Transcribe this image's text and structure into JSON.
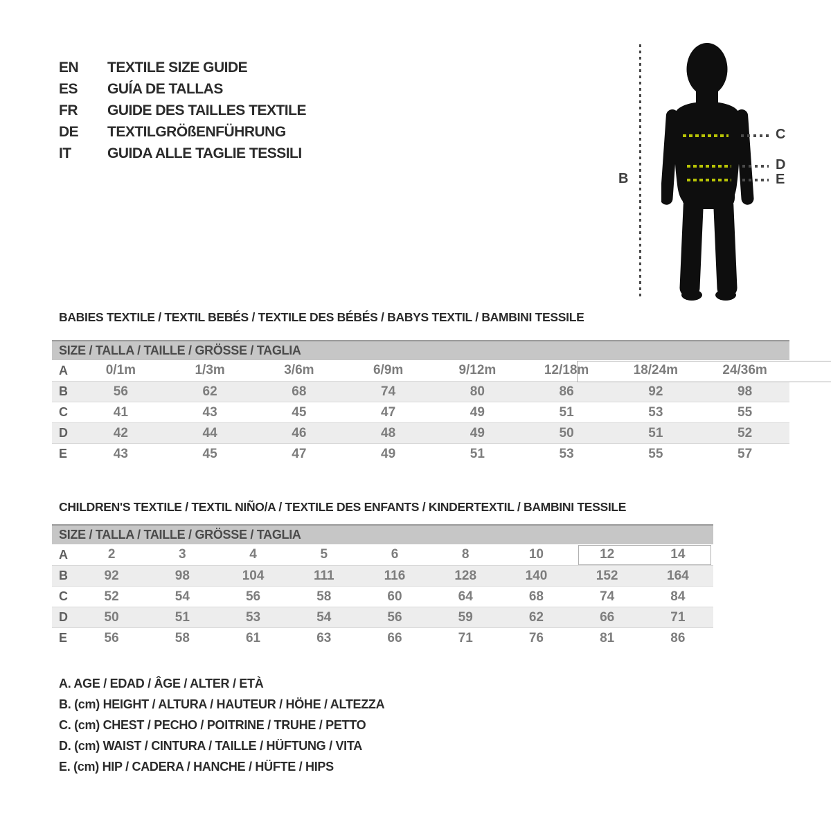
{
  "title_block": {
    "languages": [
      {
        "code": "EN",
        "label": "TEXTILE SIZE GUIDE"
      },
      {
        "code": "ES",
        "label": "GUÍA DE TALLAS"
      },
      {
        "code": "FR",
        "label": "GUIDE DES TAILLES TEXTILE"
      },
      {
        "code": "DE",
        "label": "TEXTILGRÖßENFÜHRUNG"
      },
      {
        "code": "IT",
        "label": "GUIDA ALLE TAGLIE TESSILI"
      }
    ]
  },
  "figure": {
    "height_label": "B",
    "chest_label": "C",
    "waist_label": "D",
    "hip_label": "E"
  },
  "babies": {
    "heading": "BABIES TEXTILE / TEXTIL BEBÉS / TEXTILE DES BÉBÉS / BABYS TEXTIL  / BAMBINI TESSILE",
    "size_header": "SIZE / TALLA / TAILLE / GRÖSSE / TAGLIA",
    "rows": [
      {
        "label": "A",
        "values": [
          "0/1m",
          "1/3m",
          "3/6m",
          "6/9m",
          "9/12m",
          "12/18m",
          "18/24m",
          "24/36m"
        ]
      },
      {
        "label": "B",
        "values": [
          "56",
          "62",
          "68",
          "74",
          "80",
          "86",
          "92",
          "98"
        ]
      },
      {
        "label": "C",
        "values": [
          "41",
          "43",
          "45",
          "47",
          "49",
          "51",
          "53",
          "55"
        ]
      },
      {
        "label": "D",
        "values": [
          "42",
          "44",
          "46",
          "48",
          "49",
          "50",
          "51",
          "52"
        ]
      },
      {
        "label": "E",
        "values": [
          "43",
          "45",
          "47",
          "49",
          "51",
          "53",
          "55",
          "57"
        ]
      }
    ]
  },
  "children": {
    "heading": "CHILDREN'S TEXTILE / TEXTIL NIÑO/A / TEXTILE DES ENFANTS / KINDERTEXTIL / BAMBINI TESSILE",
    "size_header": "SIZE / TALLA / TAILLE / GRÖSSE / TAGLIA",
    "rows": [
      {
        "label": "A",
        "values": [
          "2",
          "3",
          "4",
          "5",
          "6",
          "8",
          "10",
          "12",
          "14"
        ]
      },
      {
        "label": "B",
        "values": [
          "92",
          "98",
          "104",
          "111",
          "116",
          "128",
          "140",
          "152",
          "164"
        ]
      },
      {
        "label": "C",
        "values": [
          "52",
          "54",
          "56",
          "58",
          "60",
          "64",
          "68",
          "74",
          "84"
        ]
      },
      {
        "label": "D",
        "values": [
          "50",
          "51",
          "53",
          "54",
          "56",
          "59",
          "62",
          "66",
          "71"
        ]
      },
      {
        "label": "E",
        "values": [
          "56",
          "58",
          "61",
          "63",
          "66",
          "71",
          "76",
          "81",
          "86"
        ]
      }
    ]
  },
  "legend": {
    "items": [
      "A. AGE / EDAD / ÂGE / ALTER / ETÀ",
      "B. (cm) HEIGHT / ALTURA / HAUTEUR / HÖHE / ALTEZZA",
      "C. (cm) CHEST / PECHO / POITRINE / TRUHE / PETTO",
      "D. (cm) WAIST / CINTURA / TAILLE / HÜFTUNG / VITA",
      "E. (cm) HIP / CADERA / HANCHE / HÜFTE / HIPS"
    ]
  },
  "colors": {
    "accent": "#b8c405",
    "header_bar": "#c6c6c6",
    "row_shade": "#ededed",
    "silhouette": "#0e0e0e",
    "box_border": "#b0b0b0",
    "dark_dots": "#4a4a4a"
  }
}
